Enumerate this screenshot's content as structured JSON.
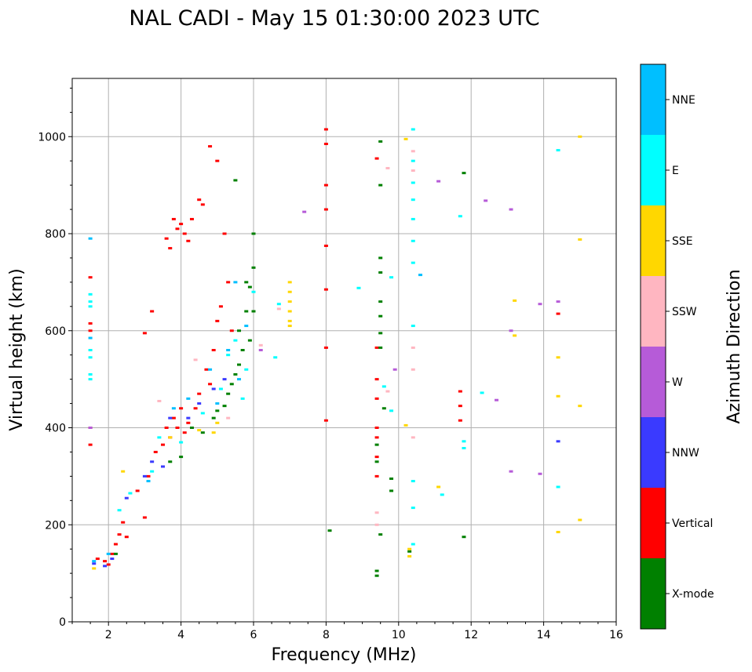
{
  "chart_data": {
    "type": "scatter",
    "title": "NAL CADI - May 15 01:30:00 2023 UTC",
    "xlabel": "Frequency (MHz)",
    "ylabel": "Virtual height (km)",
    "xlim": [
      1,
      16
    ],
    "ylim": [
      0,
      1120
    ],
    "xticks": [
      2,
      4,
      6,
      8,
      10,
      12,
      14,
      16
    ],
    "yticks": [
      0,
      200,
      400,
      600,
      800,
      1000
    ],
    "grid": true,
    "colorbar": {
      "label": "Azimuth Direction",
      "categories": [
        "X-mode",
        "Vertical",
        "NNW",
        "W",
        "SSW",
        "SSE",
        "E",
        "NNE"
      ],
      "colors": [
        "#008000",
        "#ff0000",
        "#3a3aff",
        "#b65bd8",
        "#ffb6c1",
        "#ffd700",
        "#00ffff",
        "#00bfff"
      ]
    },
    "series": [
      {
        "name": "Vertical",
        "points": [
          [
            1.5,
            710
          ],
          [
            1.5,
            615
          ],
          [
            1.5,
            600
          ],
          [
            1.5,
            400
          ],
          [
            1.5,
            365
          ],
          [
            1.7,
            130
          ],
          [
            1.9,
            125
          ],
          [
            2.0,
            118
          ],
          [
            2.1,
            140
          ],
          [
            2.2,
            160
          ],
          [
            2.3,
            180
          ],
          [
            2.4,
            205
          ],
          [
            2.5,
            175
          ],
          [
            2.8,
            270
          ],
          [
            3.0,
            215
          ],
          [
            3.0,
            595
          ],
          [
            3.1,
            300
          ],
          [
            3.2,
            640
          ],
          [
            3.3,
            350
          ],
          [
            3.5,
            365
          ],
          [
            3.6,
            400
          ],
          [
            3.6,
            790
          ],
          [
            3.7,
            380
          ],
          [
            3.7,
            770
          ],
          [
            3.8,
            420
          ],
          [
            3.8,
            830
          ],
          [
            3.9,
            400
          ],
          [
            3.9,
            810
          ],
          [
            4.0,
            440
          ],
          [
            4.0,
            820
          ],
          [
            4.1,
            390
          ],
          [
            4.1,
            800
          ],
          [
            4.2,
            410
          ],
          [
            4.2,
            785
          ],
          [
            4.3,
            830
          ],
          [
            4.4,
            440
          ],
          [
            4.5,
            470
          ],
          [
            4.5,
            870
          ],
          [
            4.6,
            860
          ],
          [
            4.7,
            520
          ],
          [
            4.8,
            490
          ],
          [
            4.8,
            980
          ],
          [
            4.9,
            560
          ],
          [
            5.0,
            620
          ],
          [
            5.0,
            950
          ],
          [
            5.1,
            650
          ],
          [
            5.2,
            800
          ],
          [
            5.3,
            700
          ],
          [
            5.4,
            600
          ],
          [
            8.0,
            1015
          ],
          [
            8.0,
            985
          ],
          [
            8.0,
            900
          ],
          [
            8.0,
            850
          ],
          [
            8.0,
            775
          ],
          [
            8.0,
            685
          ],
          [
            8.0,
            565
          ],
          [
            8.0,
            415
          ],
          [
            9.4,
            955
          ],
          [
            9.4,
            565
          ],
          [
            9.4,
            500
          ],
          [
            9.4,
            460
          ],
          [
            9.4,
            400
          ],
          [
            9.4,
            380
          ],
          [
            9.4,
            340
          ],
          [
            9.4,
            300
          ],
          [
            11.7,
            475
          ],
          [
            11.7,
            445
          ],
          [
            11.7,
            415
          ],
          [
            14.4,
            635
          ]
        ]
      },
      {
        "name": "X-mode",
        "points": [
          [
            2.2,
            140
          ],
          [
            3.7,
            330
          ],
          [
            4.0,
            340
          ],
          [
            4.3,
            400
          ],
          [
            4.6,
            390
          ],
          [
            4.9,
            420
          ],
          [
            5.0,
            435
          ],
          [
            5.2,
            445
          ],
          [
            5.3,
            470
          ],
          [
            5.4,
            490
          ],
          [
            5.5,
            510
          ],
          [
            5.6,
            530
          ],
          [
            5.6,
            600
          ],
          [
            5.7,
            560
          ],
          [
            5.8,
            640
          ],
          [
            5.8,
            700
          ],
          [
            5.9,
            690
          ],
          [
            5.9,
            580
          ],
          [
            6.0,
            730
          ],
          [
            6.0,
            800
          ],
          [
            6.0,
            640
          ],
          [
            5.5,
            910
          ],
          [
            8.1,
            188
          ],
          [
            9.4,
            105
          ],
          [
            9.4,
            95
          ],
          [
            9.4,
            365
          ],
          [
            9.4,
            330
          ],
          [
            9.5,
            990
          ],
          [
            9.5,
            900
          ],
          [
            9.5,
            750
          ],
          [
            9.5,
            720
          ],
          [
            9.5,
            660
          ],
          [
            9.5,
            630
          ],
          [
            9.5,
            595
          ],
          [
            9.5,
            565
          ],
          [
            9.5,
            180
          ],
          [
            9.6,
            440
          ],
          [
            9.8,
            295
          ],
          [
            9.8,
            270
          ],
          [
            10.3,
            145
          ],
          [
            11.8,
            925
          ],
          [
            11.8,
            175
          ]
        ]
      },
      {
        "name": "NNW",
        "points": [
          [
            1.6,
            120
          ],
          [
            1.9,
            115
          ],
          [
            2.1,
            130
          ],
          [
            2.5,
            255
          ],
          [
            3.0,
            300
          ],
          [
            3.2,
            330
          ],
          [
            3.5,
            320
          ],
          [
            3.7,
            420
          ],
          [
            4.2,
            420
          ],
          [
            4.5,
            450
          ],
          [
            4.9,
            480
          ],
          [
            5.2,
            500
          ],
          [
            14.4,
            372
          ]
        ]
      },
      {
        "name": "W",
        "points": [
          [
            1.5,
            400
          ],
          [
            6.2,
            560
          ],
          [
            7.4,
            845
          ],
          [
            9.9,
            520
          ],
          [
            11.1,
            908
          ],
          [
            12.4,
            868
          ],
          [
            12.7,
            457
          ],
          [
            13.1,
            850
          ],
          [
            13.1,
            600
          ],
          [
            13.1,
            310
          ],
          [
            13.9,
            655
          ],
          [
            13.9,
            305
          ],
          [
            14.4,
            660
          ]
        ]
      },
      {
        "name": "SSW",
        "points": [
          [
            3.4,
            455
          ],
          [
            4.4,
            540
          ],
          [
            5.3,
            420
          ],
          [
            6.2,
            570
          ],
          [
            6.7,
            645
          ],
          [
            9.4,
            225
          ],
          [
            9.4,
            200
          ],
          [
            9.7,
            475
          ],
          [
            9.7,
            935
          ],
          [
            10.4,
            970
          ],
          [
            10.4,
            565
          ],
          [
            10.4,
            520
          ],
          [
            10.4,
            380
          ],
          [
            10.4,
            930
          ]
        ]
      },
      {
        "name": "SSE",
        "points": [
          [
            1.6,
            110
          ],
          [
            2.4,
            310
          ],
          [
            3.7,
            380
          ],
          [
            4.5,
            395
          ],
          [
            4.9,
            390
          ],
          [
            5.0,
            410
          ],
          [
            7.0,
            700
          ],
          [
            7.0,
            680
          ],
          [
            7.0,
            660
          ],
          [
            7.0,
            640
          ],
          [
            7.0,
            620
          ],
          [
            7.0,
            610
          ],
          [
            10.2,
            995
          ],
          [
            10.2,
            405
          ],
          [
            10.3,
            150
          ],
          [
            10.3,
            135
          ],
          [
            11.1,
            278
          ],
          [
            13.2,
            662
          ],
          [
            13.2,
            590
          ],
          [
            14.4,
            545
          ],
          [
            14.4,
            465
          ],
          [
            14.4,
            185
          ],
          [
            15.0,
            1000
          ],
          [
            15.0,
            788
          ],
          [
            15.0,
            445
          ],
          [
            15.0,
            210
          ]
        ]
      },
      {
        "name": "E",
        "points": [
          [
            1.5,
            675
          ],
          [
            1.5,
            660
          ],
          [
            1.5,
            650
          ],
          [
            1.5,
            560
          ],
          [
            1.5,
            545
          ],
          [
            1.5,
            510
          ],
          [
            1.5,
            500
          ],
          [
            2.3,
            230
          ],
          [
            2.6,
            265
          ],
          [
            3.2,
            310
          ],
          [
            3.4,
            380
          ],
          [
            4.0,
            370
          ],
          [
            4.6,
            430
          ],
          [
            5.1,
            480
          ],
          [
            5.3,
            550
          ],
          [
            5.5,
            580
          ],
          [
            5.7,
            460
          ],
          [
            5.8,
            520
          ],
          [
            6.0,
            680
          ],
          [
            6.6,
            545
          ],
          [
            6.7,
            655
          ],
          [
            8.9,
            688
          ],
          [
            9.6,
            485
          ],
          [
            9.8,
            435
          ],
          [
            9.8,
            710
          ],
          [
            10.4,
            1015
          ],
          [
            10.4,
            950
          ],
          [
            10.4,
            905
          ],
          [
            10.4,
            870
          ],
          [
            10.4,
            830
          ],
          [
            10.4,
            785
          ],
          [
            10.4,
            740
          ],
          [
            10.4,
            290
          ],
          [
            10.4,
            235
          ],
          [
            10.4,
            160
          ],
          [
            10.4,
            610
          ],
          [
            11.2,
            262
          ],
          [
            11.7,
            836
          ],
          [
            11.8,
            372
          ],
          [
            11.8,
            358
          ],
          [
            12.3,
            472
          ],
          [
            14.4,
            972
          ],
          [
            14.4,
            278
          ]
        ]
      },
      {
        "name": "NNE",
        "points": [
          [
            1.5,
            790
          ],
          [
            1.5,
            585
          ],
          [
            1.6,
            125
          ],
          [
            2.0,
            140
          ],
          [
            3.1,
            290
          ],
          [
            3.8,
            440
          ],
          [
            4.2,
            460
          ],
          [
            4.8,
            520
          ],
          [
            5.0,
            450
          ],
          [
            5.3,
            560
          ],
          [
            5.5,
            700
          ],
          [
            5.6,
            500
          ],
          [
            5.8,
            610
          ],
          [
            10.6,
            715
          ]
        ]
      }
    ]
  }
}
